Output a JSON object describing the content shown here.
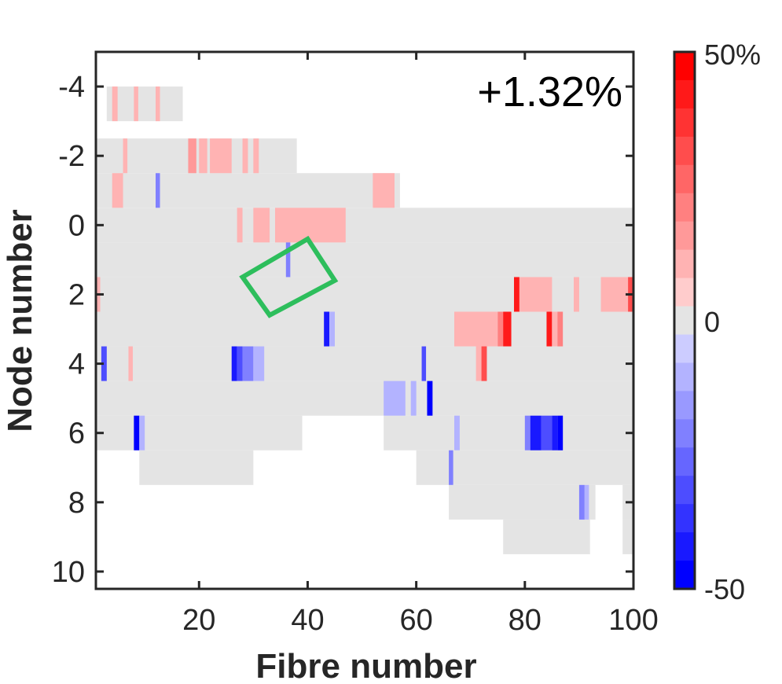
{
  "chart_data": {
    "type": "heatmap",
    "annotation": "+1.32%",
    "xlabel": "Fibre number",
    "ylabel": "Node number",
    "xlim": [
      1,
      100
    ],
    "ylim": [
      -5,
      10.5
    ],
    "y_reversed": true,
    "x_ticks": [
      {
        "value": 20,
        "label": "20"
      },
      {
        "value": 40,
        "label": "40"
      },
      {
        "value": 60,
        "label": "60"
      },
      {
        "value": 80,
        "label": "80"
      },
      {
        "value": 100,
        "label": "100"
      }
    ],
    "y_ticks": [
      {
        "value": -4,
        "label": "-4"
      },
      {
        "value": -2,
        "label": "-2"
      },
      {
        "value": 0,
        "label": "0"
      },
      {
        "value": 2,
        "label": "2"
      },
      {
        "value": 4,
        "label": "4"
      },
      {
        "value": 6,
        "label": "6"
      },
      {
        "value": 8,
        "label": "8"
      },
      {
        "value": 10,
        "label": "10"
      }
    ],
    "background_rows": [
      {
        "node": -3.5,
        "x_start": 3,
        "x_end": 17
      },
      {
        "node": -2,
        "x_start": 1,
        "x_end": 38
      },
      {
        "node": -1,
        "x_start": 1,
        "x_end": 57
      },
      {
        "node": 0,
        "x_start": 1,
        "x_end": 100
      },
      {
        "node": 1,
        "x_start": 1,
        "x_end": 100
      },
      {
        "node": 2,
        "x_start": 1,
        "x_end": 100
      },
      {
        "node": 3,
        "x_start": 1,
        "x_end": 100
      },
      {
        "node": 4,
        "x_start": 1,
        "x_end": 100
      },
      {
        "node": 5,
        "x_start": 1,
        "x_end": 100
      },
      {
        "node": 6,
        "x_start": 1,
        "x_end": 39
      },
      {
        "node": 6,
        "x_start": 54,
        "x_end": 100
      },
      {
        "node": 7,
        "x_start": 9,
        "x_end": 30
      },
      {
        "node": 7,
        "x_start": 60,
        "x_end": 100
      },
      {
        "node": 8,
        "x_start": 66,
        "x_end": 93
      },
      {
        "node": 8,
        "x_start": 98,
        "x_end": 100
      },
      {
        "node": 9,
        "x_start": 76,
        "x_end": 92
      },
      {
        "node": 9,
        "x_start": 98,
        "x_end": 100
      }
    ],
    "cells": [
      {
        "node": -3.5,
        "x_start": 4,
        "x_end": 5,
        "value": 10
      },
      {
        "node": -3.5,
        "x_start": 8,
        "x_end": 8.8,
        "value": 10
      },
      {
        "node": -3.5,
        "x_start": 12,
        "x_end": 12.8,
        "value": 10
      },
      {
        "node": -2,
        "x_start": 18,
        "x_end": 19.5,
        "value": 15
      },
      {
        "node": -2,
        "x_start": 20,
        "x_end": 21.5,
        "value": 10
      },
      {
        "node": -2,
        "x_start": 22,
        "x_end": 26,
        "value": 10
      },
      {
        "node": -2,
        "x_start": 28,
        "x_end": 29,
        "value": 10
      },
      {
        "node": -2,
        "x_start": 30,
        "x_end": 31,
        "value": 10
      },
      {
        "node": -2,
        "x_start": 6,
        "x_end": 6.8,
        "value": 10
      },
      {
        "node": -1,
        "x_start": 4,
        "x_end": 6,
        "value": 10
      },
      {
        "node": -1,
        "x_start": 12,
        "x_end": 12.8,
        "value": -20
      },
      {
        "node": -1,
        "x_start": 52,
        "x_end": 56,
        "value": 10
      },
      {
        "node": 0,
        "x_start": 27,
        "x_end": 28,
        "value": 10
      },
      {
        "node": 0,
        "x_start": 30,
        "x_end": 33,
        "value": 10
      },
      {
        "node": 0,
        "x_start": 34,
        "x_end": 47,
        "value": 10
      },
      {
        "node": 1,
        "x_start": 36,
        "x_end": 36.8,
        "value": -20
      },
      {
        "node": 2,
        "x_start": 1,
        "x_end": 1.8,
        "value": 10
      },
      {
        "node": 2,
        "x_start": 78,
        "x_end": 79,
        "value": 40
      },
      {
        "node": 2,
        "x_start": 79,
        "x_end": 85,
        "value": 10
      },
      {
        "node": 2,
        "x_start": 89,
        "x_end": 90,
        "value": 10
      },
      {
        "node": 2,
        "x_start": 94,
        "x_end": 99,
        "value": 10
      },
      {
        "node": 2,
        "x_start": 99,
        "x_end": 99.8,
        "value": 30
      },
      {
        "node": 3,
        "x_start": 43,
        "x_end": 44,
        "value": -40
      },
      {
        "node": 3,
        "x_start": 44,
        "x_end": 45,
        "value": -10
      },
      {
        "node": 3,
        "x_start": 67,
        "x_end": 75,
        "value": 10
      },
      {
        "node": 3,
        "x_start": 75,
        "x_end": 76,
        "value": 20
      },
      {
        "node": 3,
        "x_start": 76,
        "x_end": 77.5,
        "value": 40
      },
      {
        "node": 3,
        "x_start": 84,
        "x_end": 85,
        "value": 40
      },
      {
        "node": 3,
        "x_start": 85,
        "x_end": 86,
        "value": 10
      },
      {
        "node": 3,
        "x_start": 86,
        "x_end": 87,
        "value": 20
      },
      {
        "node": 4,
        "x_start": 2,
        "x_end": 3,
        "value": -30
      },
      {
        "node": 4,
        "x_start": 7,
        "x_end": 7.8,
        "value": 10
      },
      {
        "node": 4,
        "x_start": 26,
        "x_end": 27,
        "value": -40
      },
      {
        "node": 4,
        "x_start": 27,
        "x_end": 28,
        "value": -30
      },
      {
        "node": 4,
        "x_start": 28,
        "x_end": 30,
        "value": -20
      },
      {
        "node": 4,
        "x_start": 30,
        "x_end": 32,
        "value": -10
      },
      {
        "node": 4,
        "x_start": 61,
        "x_end": 61.8,
        "value": -30
      },
      {
        "node": 4,
        "x_start": 72,
        "x_end": 73,
        "value": 30
      },
      {
        "node": 4,
        "x_start": 71,
        "x_end": 72,
        "value": 10
      },
      {
        "node": 5,
        "x_start": 54,
        "x_end": 58,
        "value": -10
      },
      {
        "node": 5,
        "x_start": 59,
        "x_end": 60,
        "value": -10
      },
      {
        "node": 5,
        "x_start": 62,
        "x_end": 63,
        "value": -50
      },
      {
        "node": 6,
        "x_start": 8,
        "x_end": 9,
        "value": -50
      },
      {
        "node": 6,
        "x_start": 9,
        "x_end": 10,
        "value": -10
      },
      {
        "node": 6,
        "x_start": 67,
        "x_end": 68,
        "value": -10
      },
      {
        "node": 6,
        "x_start": 80,
        "x_end": 81,
        "value": -20
      },
      {
        "node": 6,
        "x_start": 81,
        "x_end": 83,
        "value": -40
      },
      {
        "node": 6,
        "x_start": 83,
        "x_end": 85,
        "value": -30
      },
      {
        "node": 6,
        "x_start": 85,
        "x_end": 86,
        "value": -40
      },
      {
        "node": 6,
        "x_start": 86,
        "x_end": 87,
        "value": -50
      },
      {
        "node": 7,
        "x_start": 66,
        "x_end": 66.8,
        "value": -20
      },
      {
        "node": 8,
        "x_start": 90,
        "x_end": 91,
        "value": -20
      },
      {
        "node": 8,
        "x_start": 91,
        "x_end": 91.8,
        "value": -10
      }
    ],
    "highlight": {
      "color": "#2DBE5C",
      "corners": [
        [
          28,
          1.5
        ],
        [
          40,
          0.4
        ],
        [
          45,
          1.6
        ],
        [
          33,
          2.6
        ]
      ]
    },
    "colorbar": {
      "min": -50,
      "max": 50,
      "levels": 19,
      "top_label": "50%",
      "mid_label": "0",
      "bottom_label": "-50",
      "neutral_color": "#E4E4E4",
      "positive_color": "#FF0000",
      "negative_color": "#0000FF"
    },
    "grid": false
  }
}
